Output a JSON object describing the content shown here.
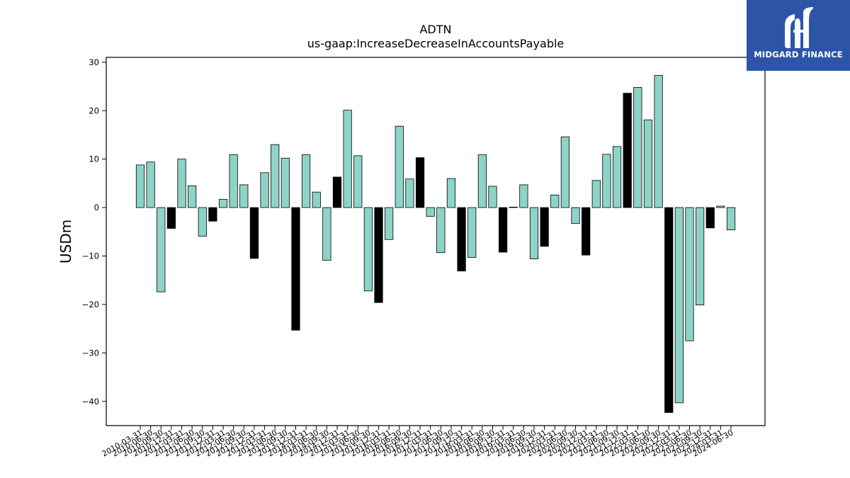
{
  "chart_data": {
    "type": "bar",
    "title": "ADTN",
    "subtitle": "us-gaap:IncreaseDecreaseInAccountsPayable",
    "xlabel": "",
    "ylabel": "USDm",
    "ylim": [
      -45,
      31
    ],
    "yticks": [
      30,
      20,
      10,
      0,
      -10,
      -20,
      -30,
      -40
    ],
    "grid": false,
    "colors": {
      "normal": "#8dd3c7",
      "q4": "#000000",
      "edge": "#000000"
    },
    "categories": [
      "2010-03-31",
      "2010-06-30",
      "2010-09-30",
      "2010-12-31",
      "2011-03-31",
      "2011-06-30",
      "2011-09-30",
      "2011-12-31",
      "2012-03-31",
      "2012-06-30",
      "2012-09-30",
      "2012-12-31",
      "2013-03-31",
      "2013-06-30",
      "2013-09-30",
      "2013-12-31",
      "2014-03-31",
      "2014-06-30",
      "2014-09-30",
      "2014-12-31",
      "2015-03-31",
      "2015-06-30",
      "2015-09-30",
      "2015-12-31",
      "2016-03-31",
      "2016-06-30",
      "2016-09-30",
      "2016-12-31",
      "2017-03-31",
      "2017-06-30",
      "2017-09-30",
      "2017-12-31",
      "2018-03-31",
      "2018-06-30",
      "2018-09-30",
      "2018-12-31",
      "2019-03-31",
      "2019-06-30",
      "2019-09-30",
      "2019-12-31",
      "2020-03-31",
      "2020-06-30",
      "2020-09-30",
      "2020-12-31",
      "2021-03-31",
      "2021-06-30",
      "2021-09-30",
      "2021-12-31",
      "2022-03-31",
      "2022-06-30",
      "2022-09-30",
      "2022-12-31",
      "2023-03-31",
      "2023-06-30",
      "2023-09-30",
      "2023-12-31",
      "2024-03-31",
      "2024-06-30"
    ],
    "values": [
      8.8,
      9.4,
      -17.4,
      -4.3,
      10.0,
      4.5,
      -5.9,
      -2.8,
      1.7,
      10.9,
      4.7,
      -10.5,
      7.2,
      13.0,
      10.2,
      -25.3,
      10.9,
      3.2,
      -10.9,
      6.3,
      20.1,
      10.7,
      -17.2,
      -19.6,
      -6.6,
      16.8,
      5.9,
      10.3,
      -1.8,
      -9.3,
      6.0,
      -13.1,
      -10.3,
      10.9,
      4.4,
      -9.2,
      0.1,
      4.7,
      -10.6,
      -8.0,
      2.6,
      14.6,
      -3.3,
      -9.8,
      5.6,
      11.0,
      12.6,
      23.6,
      24.8,
      18.1,
      27.3,
      -42.3,
      -40.3,
      -27.5,
      -20.1,
      -4.2,
      0.3,
      -4.6
    ]
  },
  "logo": {
    "text": "MIDGARD FINANCE"
  }
}
